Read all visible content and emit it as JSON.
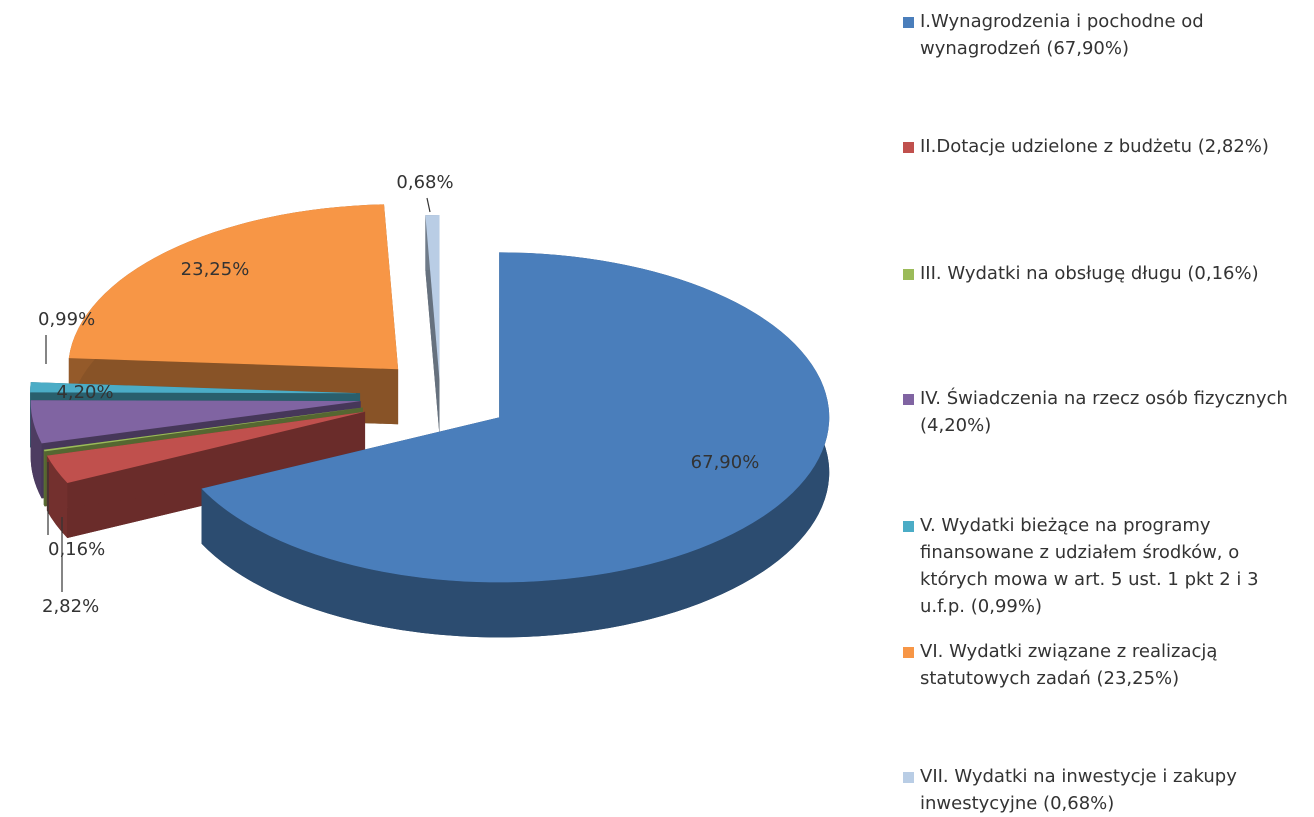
{
  "chart_data": {
    "type": "pie",
    "categories": [
      "I.Wynagrodzenia i pochodne od wynagrodzeń (67,90%)",
      "II.Dotacje udzielone z budżetu (2,82%)",
      "III. Wydatki na obsługę długu (0,16%)",
      "IV. Świadczenia na rzecz osób fizycznych (4,20%)",
      "V. Wydatki bieżące na programy finansowane z udziałem środków, o których mowa w art. 5 ust. 1 pkt 2 i 3 u.f.p. (0,99%)",
      "VI. Wydatki związane z realizacją statutowych zadań (23,25%)",
      "VII. Wydatki na inwestycje i zakupy inwestycyjne (0,68%)"
    ],
    "values": [
      67.9,
      2.82,
      0.16,
      4.2,
      0.99,
      23.25,
      0.68
    ],
    "value_labels": [
      "67,90%",
      "2,82%",
      "0,16%",
      "4,20%",
      "0,99%",
      "23,25%",
      "0,68%"
    ],
    "colors": [
      "#4a7ebb",
      "#c0504d",
      "#9bbb59",
      "#8064a2",
      "#4bacc6",
      "#f79646",
      "#b9cde5"
    ],
    "legend": "right"
  }
}
